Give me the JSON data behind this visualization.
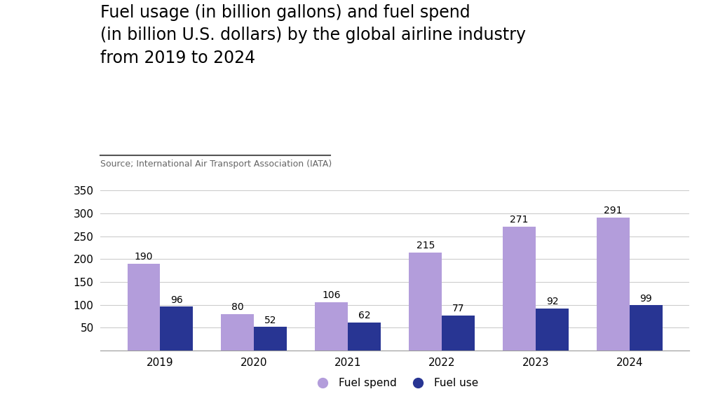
{
  "title": "Fuel usage (in billion gallons) and fuel spend\n(in billion U.S. dollars) by the global airline industry\nfrom 2019 to 2024",
  "source": "Source; International Air Transport Association (IATA)",
  "years": [
    "2019",
    "2020",
    "2021",
    "2022",
    "2023",
    "2024"
  ],
  "fuel_spend": [
    190,
    80,
    106,
    215,
    271,
    291
  ],
  "fuel_use": [
    96,
    52,
    62,
    77,
    92,
    99
  ],
  "fuel_spend_color": "#b39ddb",
  "fuel_use_color": "#283593",
  "background_color": "#ffffff",
  "ylim": [
    0,
    370
  ],
  "yticks": [
    50,
    100,
    150,
    200,
    250,
    300,
    350
  ],
  "bar_width": 0.35,
  "legend_labels": [
    "Fuel spend",
    "Fuel use"
  ],
  "title_fontsize": 17,
  "source_fontsize": 9,
  "tick_fontsize": 11,
  "label_fontsize": 10,
  "legend_fontsize": 11
}
